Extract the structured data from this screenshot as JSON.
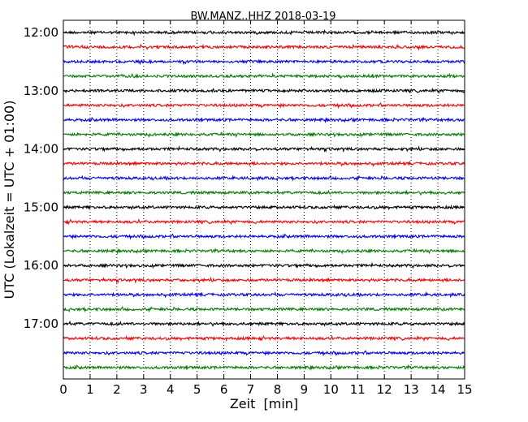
{
  "chart_data": {
    "type": "line",
    "title": "BW.MANZ..HHZ 2018-03-19",
    "xlabel": "Zeit  [min]",
    "ylabel": "UTC (Lokalzeit = UTC + 01:00)",
    "xlim": [
      0,
      15
    ],
    "x_ticks": [
      0,
      1,
      2,
      3,
      4,
      5,
      6,
      7,
      8,
      9,
      10,
      11,
      12,
      13,
      14,
      15
    ],
    "x_tick_labels": [
      "0",
      "1",
      "2",
      "3",
      "4",
      "5",
      "6",
      "7",
      "8",
      "9",
      "10",
      "11",
      "12",
      "13",
      "14",
      "15"
    ],
    "y_tick_labels": [
      "12:00",
      "13:00",
      "14:00",
      "15:00",
      "16:00",
      "17:00"
    ],
    "traces_per_hour": 4,
    "trace_start_times": [
      "12:00",
      "12:15",
      "12:30",
      "12:45",
      "13:00",
      "13:15",
      "13:30",
      "13:45",
      "14:00",
      "14:15",
      "14:30",
      "14:45",
      "15:00",
      "15:15",
      "15:30",
      "15:45",
      "16:00",
      "16:15",
      "16:30",
      "16:45",
      "17:00",
      "17:15",
      "17:30",
      "17:45"
    ],
    "trace_colors": [
      "#000000",
      "#ff0000",
      "#0000ff",
      "#008000"
    ],
    "vertical_grid": true,
    "grid_style": "dotted"
  }
}
